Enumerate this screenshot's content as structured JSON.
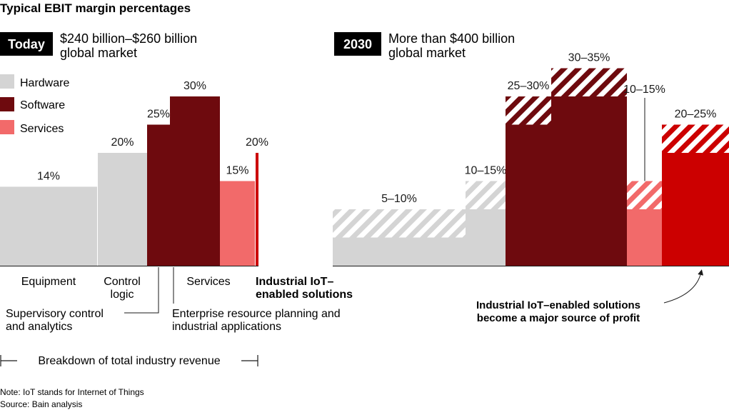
{
  "title": "Typical EBIT margin percentages",
  "colors": {
    "hardware": "#d4d4d4",
    "software": "#6e0a0e",
    "services": "#f26a6a",
    "iot": "#cc0000",
    "text": "#1a1a1a",
    "badge_bg": "#000000",
    "badge_text": "#ffffff"
  },
  "panels": [
    {
      "badge": "Today",
      "subtitle_line1": "$240 billion–$260 billion",
      "subtitle_line2": "global market"
    },
    {
      "badge": "2030",
      "subtitle_line1": "More than $400 billion",
      "subtitle_line2": "global market"
    }
  ],
  "legend": [
    {
      "label": "Hardware",
      "color_key": "hardware"
    },
    {
      "label": "Software",
      "color_key": "software"
    },
    {
      "label": "Services",
      "color_key": "services"
    }
  ],
  "chart_data": [
    {
      "type": "bar",
      "panel": "Today",
      "value_unit": "% EBIT margin",
      "bars": [
        {
          "segment": "Equipment",
          "category": "Hardware",
          "margin": 14,
          "label": "14%"
        },
        {
          "segment": "Control logic",
          "category": "Hardware",
          "margin": 20,
          "label": "20%"
        },
        {
          "segment": "Supervisory control and analytics",
          "category": "Software",
          "margin": 25,
          "label": "25%"
        },
        {
          "segment": "Enterprise resource planning and industrial applications",
          "category": "Software",
          "margin": 30,
          "label": "30%"
        },
        {
          "segment": "Services",
          "category": "Services",
          "margin": 15,
          "label": "15%"
        },
        {
          "segment": "Industrial IoT–enabled solutions",
          "category": "Industrial IoT",
          "margin": 20,
          "label": "20%"
        }
      ]
    },
    {
      "type": "bar",
      "panel": "2030",
      "value_unit": "% EBIT margin",
      "bars": [
        {
          "segment": "Equipment",
          "category": "Hardware",
          "margin_low": 5,
          "margin_high": 10,
          "label": "5–10%"
        },
        {
          "segment": "Control logic",
          "category": "Hardware",
          "margin_low": 10,
          "margin_high": 15,
          "label": "10–15%"
        },
        {
          "segment": "Supervisory control and analytics",
          "category": "Software",
          "margin_low": 25,
          "margin_high": 30,
          "label": "25–30%"
        },
        {
          "segment": "Enterprise resource planning and industrial applications",
          "category": "Software",
          "margin_low": 30,
          "margin_high": 35,
          "label": "30–35%"
        },
        {
          "segment": "Services",
          "category": "Services",
          "margin_low": 10,
          "margin_high": 15,
          "label": "10–15%"
        },
        {
          "segment": "Industrial IoT–enabled solutions",
          "category": "Industrial IoT",
          "margin_low": 20,
          "margin_high": 25,
          "label": "20–25%"
        }
      ]
    }
  ],
  "segment_labels": {
    "equipment": "Equipment",
    "control_logic_1": "Control",
    "control_logic_2": "logic",
    "services": "Services",
    "iot_1": "Industrial IoT–",
    "iot_2": "enabled solutions",
    "supervisory_1": "Supervisory control",
    "supervisory_2": "and analytics",
    "erp_1": "Enterprise resource planning and",
    "erp_2": "industrial applications"
  },
  "breakdown_label": "Breakdown of total industry revenue",
  "annotation_line1": "Industrial IoT–enabled solutions",
  "annotation_line2": "become a major source of profit",
  "note": "Note: IoT stands for Internet of Things",
  "source": "Source: Bain analysis"
}
